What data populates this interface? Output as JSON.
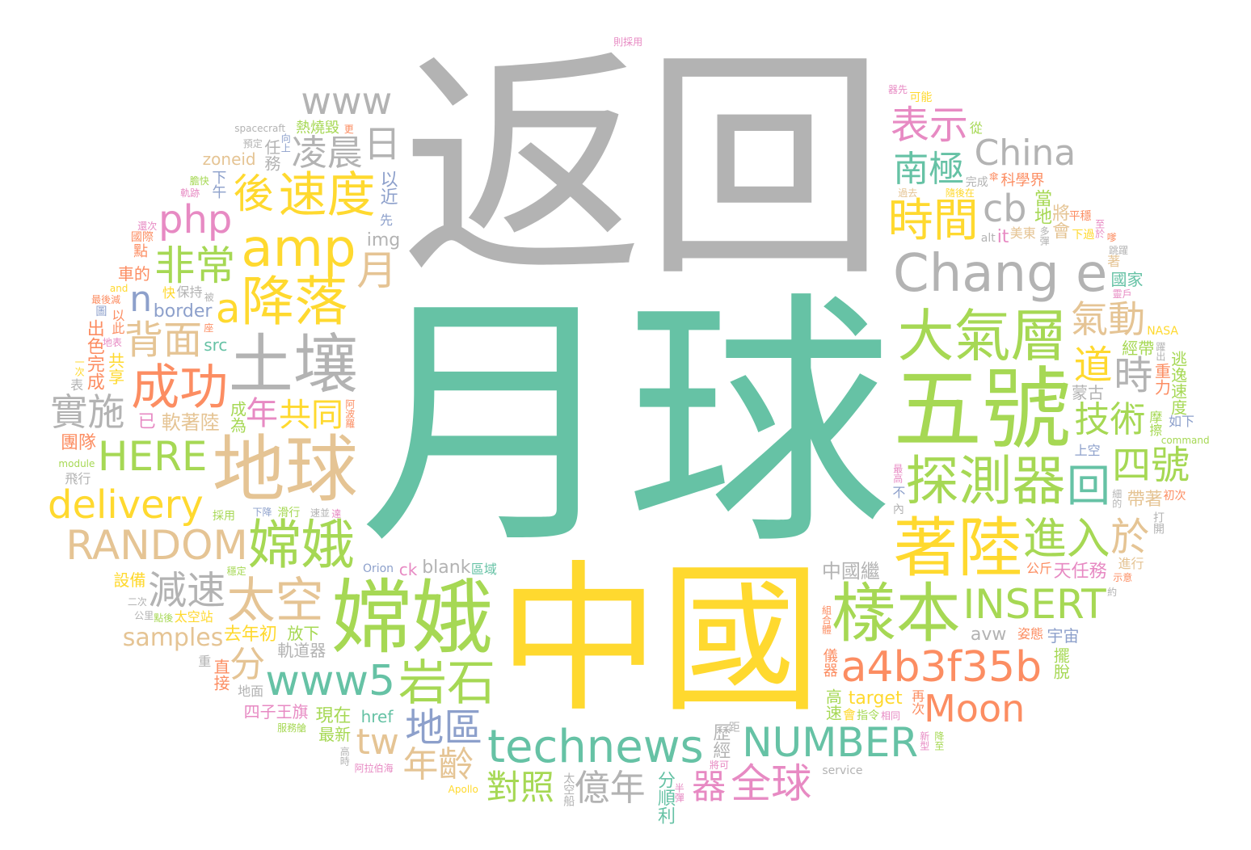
{
  "colors": {
    "teal": "#66c2a5",
    "orange": "#fc8d62",
    "blue": "#8da0cb",
    "pink": "#e78ac3",
    "lime": "#a6d854",
    "yellow": "#ffd92f",
    "tan": "#e5c494",
    "gray": "#b3b3b3"
  },
  "words": [
    {
      "text": "月球",
      "color": "#66c2a5",
      "size": 330
    },
    {
      "text": "返回",
      "color": "#b3b3b3",
      "size": 300
    },
    {
      "text": "中國",
      "color": "#ffd92f",
      "size": 200
    },
    {
      "text": "五號",
      "color": "#a6d854",
      "size": 110
    },
    {
      "text": "嫦娥",
      "color": "#a6d854",
      "size": 100
    },
    {
      "text": "地球",
      "color": "#e5c494",
      "size": 90
    },
    {
      "text": "土壤",
      "color": "#b3b3b3",
      "size": 80
    },
    {
      "text": "著陸",
      "color": "#ffd92f",
      "size": 80
    },
    {
      "text": "樣本",
      "color": "#a6d854",
      "size": 80
    },
    {
      "text": "大氣層",
      "color": "#a6d854",
      "size": 70
    },
    {
      "text": "探測器",
      "color": "#a6d854",
      "size": 66
    },
    {
      "text": "嫦娥",
      "color": "#a6d854",
      "size": 66
    },
    {
      "text": "降落",
      "color": "#ffd92f",
      "size": 66
    },
    {
      "text": "Chang e",
      "color": "#b3b3b3",
      "size": 64
    },
    {
      "text": "amp",
      "color": "#ffd92f",
      "size": 64
    },
    {
      "text": "technews",
      "color": "#66c2a5",
      "size": 56
    },
    {
      "text": "太空",
      "color": "#e5c494",
      "size": 60
    },
    {
      "text": "岩石",
      "color": "#a6d854",
      "size": 60
    },
    {
      "text": "成功",
      "color": "#fc8d62",
      "size": 60
    },
    {
      "text": "時間",
      "color": "#ffd92f",
      "size": 56
    },
    {
      "text": "速度",
      "color": "#ffd92f",
      "size": 60
    },
    {
      "text": "a4b3f35b",
      "color": "#fc8d62",
      "size": 52
    },
    {
      "text": "www5",
      "color": "#66c2a5",
      "size": 52
    },
    {
      "text": "NUMBER",
      "color": "#66c2a5",
      "size": 50
    },
    {
      "text": "RANDOM",
      "color": "#e5c494",
      "size": 50
    },
    {
      "text": "INSERT",
      "color": "#a6d854",
      "size": 50
    },
    {
      "text": "HERE",
      "color": "#a6d854",
      "size": 50
    },
    {
      "text": "delivery",
      "color": "#ffd92f",
      "size": 48
    },
    {
      "text": "進入",
      "color": "#a6d854",
      "size": 54
    },
    {
      "text": "南極",
      "color": "#66c2a5",
      "size": 44
    },
    {
      "text": "地區",
      "color": "#8da0cb",
      "size": 48
    },
    {
      "text": "回",
      "color": "#66c2a5",
      "size": 54
    },
    {
      "text": "a",
      "color": "#ffd92f",
      "size": 50
    },
    {
      "text": "非常",
      "color": "#a6d854",
      "size": 50
    },
    {
      "text": "共同",
      "color": "#ffd92f",
      "size": 40
    },
    {
      "text": "背面",
      "color": "#e5c494",
      "size": 48
    },
    {
      "text": "月",
      "color": "#e5c494",
      "size": 50
    },
    {
      "text": "道",
      "color": "#ffd92f",
      "size": 48
    },
    {
      "text": "減速",
      "color": "#b3b3b3",
      "size": 48
    },
    {
      "text": "凌晨",
      "color": "#b3b3b3",
      "size": 44
    },
    {
      "text": "技術",
      "color": "#a6d854",
      "size": 44
    },
    {
      "text": "cb",
      "color": "#b3b3b3",
      "size": 46
    },
    {
      "text": "日",
      "color": "#b3b3b3",
      "size": 46
    },
    {
      "text": "php",
      "color": "#e78ac3",
      "size": 48
    },
    {
      "text": "後",
      "color": "#ffd92f",
      "size": 50
    },
    {
      "text": "分",
      "color": "#e5c494",
      "size": 44
    },
    {
      "text": "億年",
      "color": "#b3b3b3",
      "size": 44
    },
    {
      "text": "氣動",
      "color": "#e5c494",
      "size": 46
    },
    {
      "text": "tw",
      "color": "#e5c494",
      "size": 44
    },
    {
      "text": "Moon",
      "color": "#fc8d62",
      "size": 46
    },
    {
      "text": "時",
      "color": "#b3b3b3",
      "size": 48
    },
    {
      "text": "於",
      "color": "#e5c494",
      "size": 48
    },
    {
      "text": "全球",
      "color": "#e78ac3",
      "size": 50
    },
    {
      "text": "n",
      "color": "#8da0cb",
      "size": 44
    },
    {
      "text": "表示",
      "color": "#e78ac3",
      "size": 48
    },
    {
      "text": "www",
      "color": "#b3b3b3",
      "size": 46
    },
    {
      "text": "實施",
      "color": "#b3b3b3",
      "size": 46
    },
    {
      "text": "年齡",
      "color": "#e5c494",
      "size": 44
    },
    {
      "text": "China",
      "color": "#b3b3b3",
      "size": 44
    },
    {
      "text": "年",
      "color": "#e78ac3",
      "size": 40
    },
    {
      "text": "四號",
      "color": "#a6d854",
      "size": 48
    },
    {
      "text": "對照",
      "color": "#a6d854",
      "size": 42
    },
    {
      "text": "器",
      "color": "#e78ac3",
      "size": 42
    },
    {
      "text": "samples",
      "color": "#e5c494",
      "size": 30
    },
    {
      "text": "中國繼",
      "color": "#b3b3b3",
      "size": 24
    },
    {
      "text": "軟著陸",
      "color": "#e5c494",
      "size": 24
    },
    {
      "text": "出色完成",
      "color": "#fc8d62",
      "size": 22
    },
    {
      "text": "軌道器",
      "color": "#b3b3b3",
      "size": 20
    },
    {
      "text": "以近",
      "color": "#8da0cb",
      "size": 22
    },
    {
      "text": "target",
      "color": "#ffd92f",
      "size": 22
    },
    {
      "text": "avw",
      "color": "#b3b3b3",
      "size": 22
    },
    {
      "text": "border",
      "color": "#8da0cb",
      "size": 22
    },
    {
      "text": "去年初",
      "color": "#ffd92f",
      "size": 22
    },
    {
      "text": "天任務",
      "color": "#e78ac3",
      "size": 22
    },
    {
      "text": "當地",
      "color": "#a6d854",
      "size": 22
    },
    {
      "text": "現在",
      "color": "#a6d854",
      "size": 22
    },
    {
      "text": "將會",
      "color": "#e5c494",
      "size": 22
    },
    {
      "text": "歷經",
      "color": "#b3b3b3",
      "size": 22
    },
    {
      "text": "img",
      "color": "#b3b3b3",
      "size": 22
    },
    {
      "text": "高速",
      "color": "#a6d854",
      "size": 20
    },
    {
      "text": "blank",
      "color": "#b3b3b3",
      "size": 22
    },
    {
      "text": "帶著",
      "color": "#e5c494",
      "size": 22
    },
    {
      "text": "任務",
      "color": "#b3b3b3",
      "size": 20
    },
    {
      "text": "src",
      "color": "#66c2a5",
      "size": 20
    },
    {
      "text": "ck",
      "color": "#e78ac3",
      "size": 20
    },
    {
      "text": "宇宙",
      "color": "#8da0cb",
      "size": 20
    },
    {
      "text": "放下",
      "color": "#a6d854",
      "size": 20
    },
    {
      "text": "再次",
      "color": "#fc8d62",
      "size": 16
    },
    {
      "text": "以此",
      "color": "#fc8d62",
      "size": 16
    },
    {
      "text": "重力",
      "color": "#fc8d62",
      "size": 20
    },
    {
      "text": "最新",
      "color": "#a6d854",
      "size": 20
    },
    {
      "text": "美東",
      "color": "#e5c494",
      "size": 16
    },
    {
      "text": "公斤",
      "color": "#fc8d62",
      "size": 16
    },
    {
      "text": "it",
      "color": "#e78ac3",
      "size": 22
    },
    {
      "text": "成為",
      "color": "#a6d854",
      "size": 20
    },
    {
      "text": "href",
      "color": "#66c2a5",
      "size": 20
    },
    {
      "text": "已",
      "color": "#e78ac3",
      "size": 22
    },
    {
      "text": "分順利",
      "color": "#66c2a5",
      "size": 22
    },
    {
      "text": "國家",
      "color": "#66c2a5",
      "size": 20
    },
    {
      "text": "車的",
      "color": "#fc8d62",
      "size": 20
    },
    {
      "text": "設備",
      "color": "#ffd92f",
      "size": 20
    },
    {
      "text": "直接",
      "color": "#fc8d62",
      "size": 20
    },
    {
      "text": "蒙古",
      "color": "#b3b3b3",
      "size": 20
    },
    {
      "text": "科學界",
      "color": "#fc8d62",
      "size": 18
    },
    {
      "text": "團隊",
      "color": "#fc8d62",
      "size": 22
    },
    {
      "text": "共享",
      "color": "#ffd92f",
      "size": 20
    },
    {
      "text": "摩擦",
      "color": "#a6d854",
      "size": 16
    },
    {
      "text": "逃逸速度",
      "color": "#a6d854",
      "size": 20
    },
    {
      "text": "擺脫",
      "color": "#a6d854",
      "size": 20
    },
    {
      "text": "下午",
      "color": "#8da0cb",
      "size": 18
    },
    {
      "text": "zoneid",
      "color": "#e5c494",
      "size": 20
    },
    {
      "text": "經帶",
      "color": "#a6d854",
      "size": 20
    },
    {
      "text": "熱燒毀",
      "color": "#a6d854",
      "size": 18
    },
    {
      "text": "儀器",
      "color": "#fc8d62",
      "size": 18
    },
    {
      "text": "姿態",
      "color": "#fc8d62",
      "size": 16
    },
    {
      "text": "四子王旗",
      "color": "#e78ac3",
      "size": 20
    },
    {
      "text": "太空站",
      "color": "#ffd92f",
      "size": 16
    },
    {
      "text": "區域",
      "color": "#66c2a5",
      "size": 16
    },
    {
      "text": "保持",
      "color": "#b3b3b3",
      "size": 16
    },
    {
      "text": "地面",
      "color": "#b3b3b3",
      "size": 16
    },
    {
      "text": "Orion",
      "color": "#8da0cb",
      "size": 14
    },
    {
      "text": "先",
      "color": "#8da0cb",
      "size": 16
    },
    {
      "text": "指令",
      "color": "#a6d854",
      "size": 14
    },
    {
      "text": "平穩",
      "color": "#fc8d62",
      "size": 14
    },
    {
      "text": "不",
      "color": "#8da0cb",
      "size": 16
    },
    {
      "text": "採用",
      "color": "#a6d854",
      "size": 14
    },
    {
      "text": "完成",
      "color": "#b3b3b3",
      "size": 14
    },
    {
      "text": "service",
      "color": "#b3b3b3",
      "size": 14
    },
    {
      "text": "太空船",
      "color": "#b3b3b3",
      "size": 14
    },
    {
      "text": "上空",
      "color": "#8da0cb",
      "size": 16
    },
    {
      "text": "進行",
      "color": "#e5c494",
      "size": 16
    },
    {
      "text": "點",
      "color": "#fc8d62",
      "size": 18
    },
    {
      "text": "新型",
      "color": "#e78ac3",
      "size": 12
    },
    {
      "text": "下降",
      "color": "#8da0cb",
      "size": 12
    },
    {
      "text": "下過",
      "color": "#ffd92f",
      "size": 14
    },
    {
      "text": "半彈",
      "color": "#e78ac3",
      "size": 12
    },
    {
      "text": "最高",
      "color": "#e78ac3",
      "size": 12
    },
    {
      "text": "阿波羅",
      "color": "#fc8d62",
      "size": 12
    },
    {
      "text": "過去",
      "color": "#e5c494",
      "size": 12
    },
    {
      "text": "相同",
      "color": "#e78ac3",
      "size": 12
    },
    {
      "text": "內",
      "color": "#b3b3b3",
      "size": 14
    },
    {
      "text": "距",
      "color": "#b3b3b3",
      "size": 14
    },
    {
      "text": "隨後在",
      "color": "#ffd92f",
      "size": 12
    },
    {
      "text": "Apollo",
      "color": "#ffd92f",
      "size": 12
    },
    {
      "text": "滑行",
      "color": "#a6d854",
      "size": 14
    },
    {
      "text": "點後",
      "color": "#a6d854",
      "size": 12
    },
    {
      "text": "軌跡",
      "color": "#e78ac3",
      "size": 12
    },
    {
      "text": "向上",
      "color": "#8da0cb",
      "size": 12
    },
    {
      "text": "服務艙",
      "color": "#a6d854",
      "size": 12
    },
    {
      "text": "示意",
      "color": "#fc8d62",
      "size": 12
    },
    {
      "text": "約",
      "color": "#b3b3b3",
      "size": 12
    },
    {
      "text": "最後減",
      "color": "#fc8d62",
      "size": 12
    },
    {
      "text": "躍出",
      "color": "#b3b3b3",
      "size": 12
    },
    {
      "text": "如下",
      "color": "#8da0cb",
      "size": 16
    },
    {
      "text": "從",
      "color": "#a6d854",
      "size": 16
    },
    {
      "text": "飛行",
      "color": "#b3b3b3",
      "size": 16
    },
    {
      "text": "NASA",
      "color": "#ffd92f",
      "size": 14
    },
    {
      "text": "module",
      "color": "#a6d854",
      "size": 12
    },
    {
      "text": "則採用",
      "color": "#e78ac3",
      "size": 12
    },
    {
      "text": "國際",
      "color": "#fc8d62",
      "size": 14
    },
    {
      "text": "著",
      "color": "#e5c494",
      "size": 16
    },
    {
      "text": "細的",
      "color": "#b3b3b3",
      "size": 12
    },
    {
      "text": "至於",
      "color": "#e78ac3",
      "size": 12
    },
    {
      "text": "阿拉伯海",
      "color": "#e78ac3",
      "size": 12
    },
    {
      "text": "打開",
      "color": "#b3b3b3",
      "size": 14
    },
    {
      "text": "alt",
      "color": "#b3b3b3",
      "size": 14
    },
    {
      "text": "將可",
      "color": "#e78ac3",
      "size": 12
    },
    {
      "text": "重",
      "color": "#b3b3b3",
      "size": 16
    },
    {
      "text": "多彈",
      "color": "#b3b3b3",
      "size": 12
    },
    {
      "text": "and",
      "color": "#ffd92f",
      "size": 12
    },
    {
      "text": "預定",
      "color": "#b3b3b3",
      "size": 12
    },
    {
      "text": "初次",
      "color": "#fc8d62",
      "size": 14
    },
    {
      "text": "二次",
      "color": "#b3b3b3",
      "size": 12
    },
    {
      "text": "一次",
      "color": "#ffd92f",
      "size": 12
    },
    {
      "text": "穩定",
      "color": "#a6d854",
      "size": 12
    },
    {
      "text": "器先",
      "color": "#e78ac3",
      "size": 12
    },
    {
      "text": "spacecraft",
      "color": "#b3b3b3",
      "size": 12
    },
    {
      "text": "高時",
      "color": "#b3b3b3",
      "size": 12
    },
    {
      "text": "command",
      "color": "#a6d854",
      "size": 12
    },
    {
      "text": "速並",
      "color": "#b3b3b3",
      "size": 12
    },
    {
      "text": "地表",
      "color": "#e78ac3",
      "size": 12
    },
    {
      "text": "膽快",
      "color": "#a6d854",
      "size": 12
    },
    {
      "text": "跳躍",
      "color": "#b3b3b3",
      "size": 12
    },
    {
      "text": "組合體",
      "color": "#fc8d62",
      "size": 12
    },
    {
      "text": "降至",
      "color": "#a6d854",
      "size": 12
    },
    {
      "text": "可能",
      "color": "#ffd92f",
      "size": 14
    },
    {
      "text": "公里",
      "color": "#b3b3b3",
      "size": 12
    },
    {
      "text": "更",
      "color": "#fc8d62",
      "size": 12
    },
    {
      "text": "傘",
      "color": "#fc8d62",
      "size": 12
    },
    {
      "text": "會",
      "color": "#ffd92f",
      "size": 16
    },
    {
      "text": "快",
      "color": "#ffd92f",
      "size": 16
    },
    {
      "text": "被",
      "color": "#b3b3b3",
      "size": 12
    },
    {
      "text": "表",
      "color": "#b3b3b3",
      "size": 16
    },
    {
      "text": "達",
      "color": "#e78ac3",
      "size": 12
    },
    {
      "text": "座",
      "color": "#fc8d62",
      "size": 12
    },
    {
      "text": "還次",
      "color": "#e78ac3",
      "size": 12
    },
    {
      "text": "靈戶",
      "color": "#e78ac3",
      "size": 12
    },
    {
      "text": "圖",
      "color": "#8da0cb",
      "size": 14
    },
    {
      "text": "嗲",
      "color": "#fc8d62",
      "size": 12
    }
  ]
}
